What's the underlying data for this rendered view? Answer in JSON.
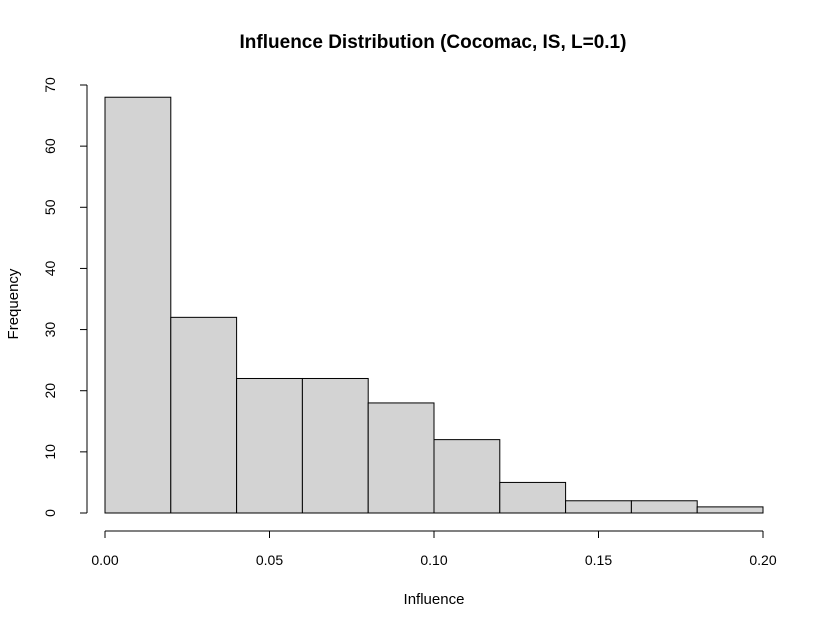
{
  "chart_data": {
    "type": "bar",
    "title": "Influence Distribution (Cocomac, IS, L=0.1)",
    "xlabel": "Influence",
    "ylabel": "Frequency",
    "bins": [
      {
        "x0": 0.0,
        "x1": 0.02,
        "count": 68
      },
      {
        "x0": 0.02,
        "x1": 0.04,
        "count": 32
      },
      {
        "x0": 0.04,
        "x1": 0.06,
        "count": 22
      },
      {
        "x0": 0.06,
        "x1": 0.08,
        "count": 22
      },
      {
        "x0": 0.08,
        "x1": 0.1,
        "count": 18
      },
      {
        "x0": 0.1,
        "x1": 0.12,
        "count": 12
      },
      {
        "x0": 0.12,
        "x1": 0.14,
        "count": 5
      },
      {
        "x0": 0.14,
        "x1": 0.16,
        "count": 2
      },
      {
        "x0": 0.16,
        "x1": 0.18,
        "count": 2
      },
      {
        "x0": 0.18,
        "x1": 0.2,
        "count": 1
      }
    ],
    "xlim": [
      0,
      0.2
    ],
    "ylim": [
      0,
      70
    ],
    "x_ticks": [
      {
        "value": 0.0,
        "label": "0.00"
      },
      {
        "value": 0.05,
        "label": "0.05"
      },
      {
        "value": 0.1,
        "label": "0.10"
      },
      {
        "value": 0.15,
        "label": "0.15"
      },
      {
        "value": 0.2,
        "label": "0.20"
      }
    ],
    "y_ticks": [
      {
        "value": 0,
        "label": "0"
      },
      {
        "value": 10,
        "label": "10"
      },
      {
        "value": 20,
        "label": "20"
      },
      {
        "value": 30,
        "label": "30"
      },
      {
        "value": 40,
        "label": "40"
      },
      {
        "value": 50,
        "label": "50"
      },
      {
        "value": 60,
        "label": "60"
      },
      {
        "value": 70,
        "label": "70"
      }
    ],
    "grid": false,
    "bar_color": "#d3d3d3",
    "edge_color": "#000000"
  }
}
